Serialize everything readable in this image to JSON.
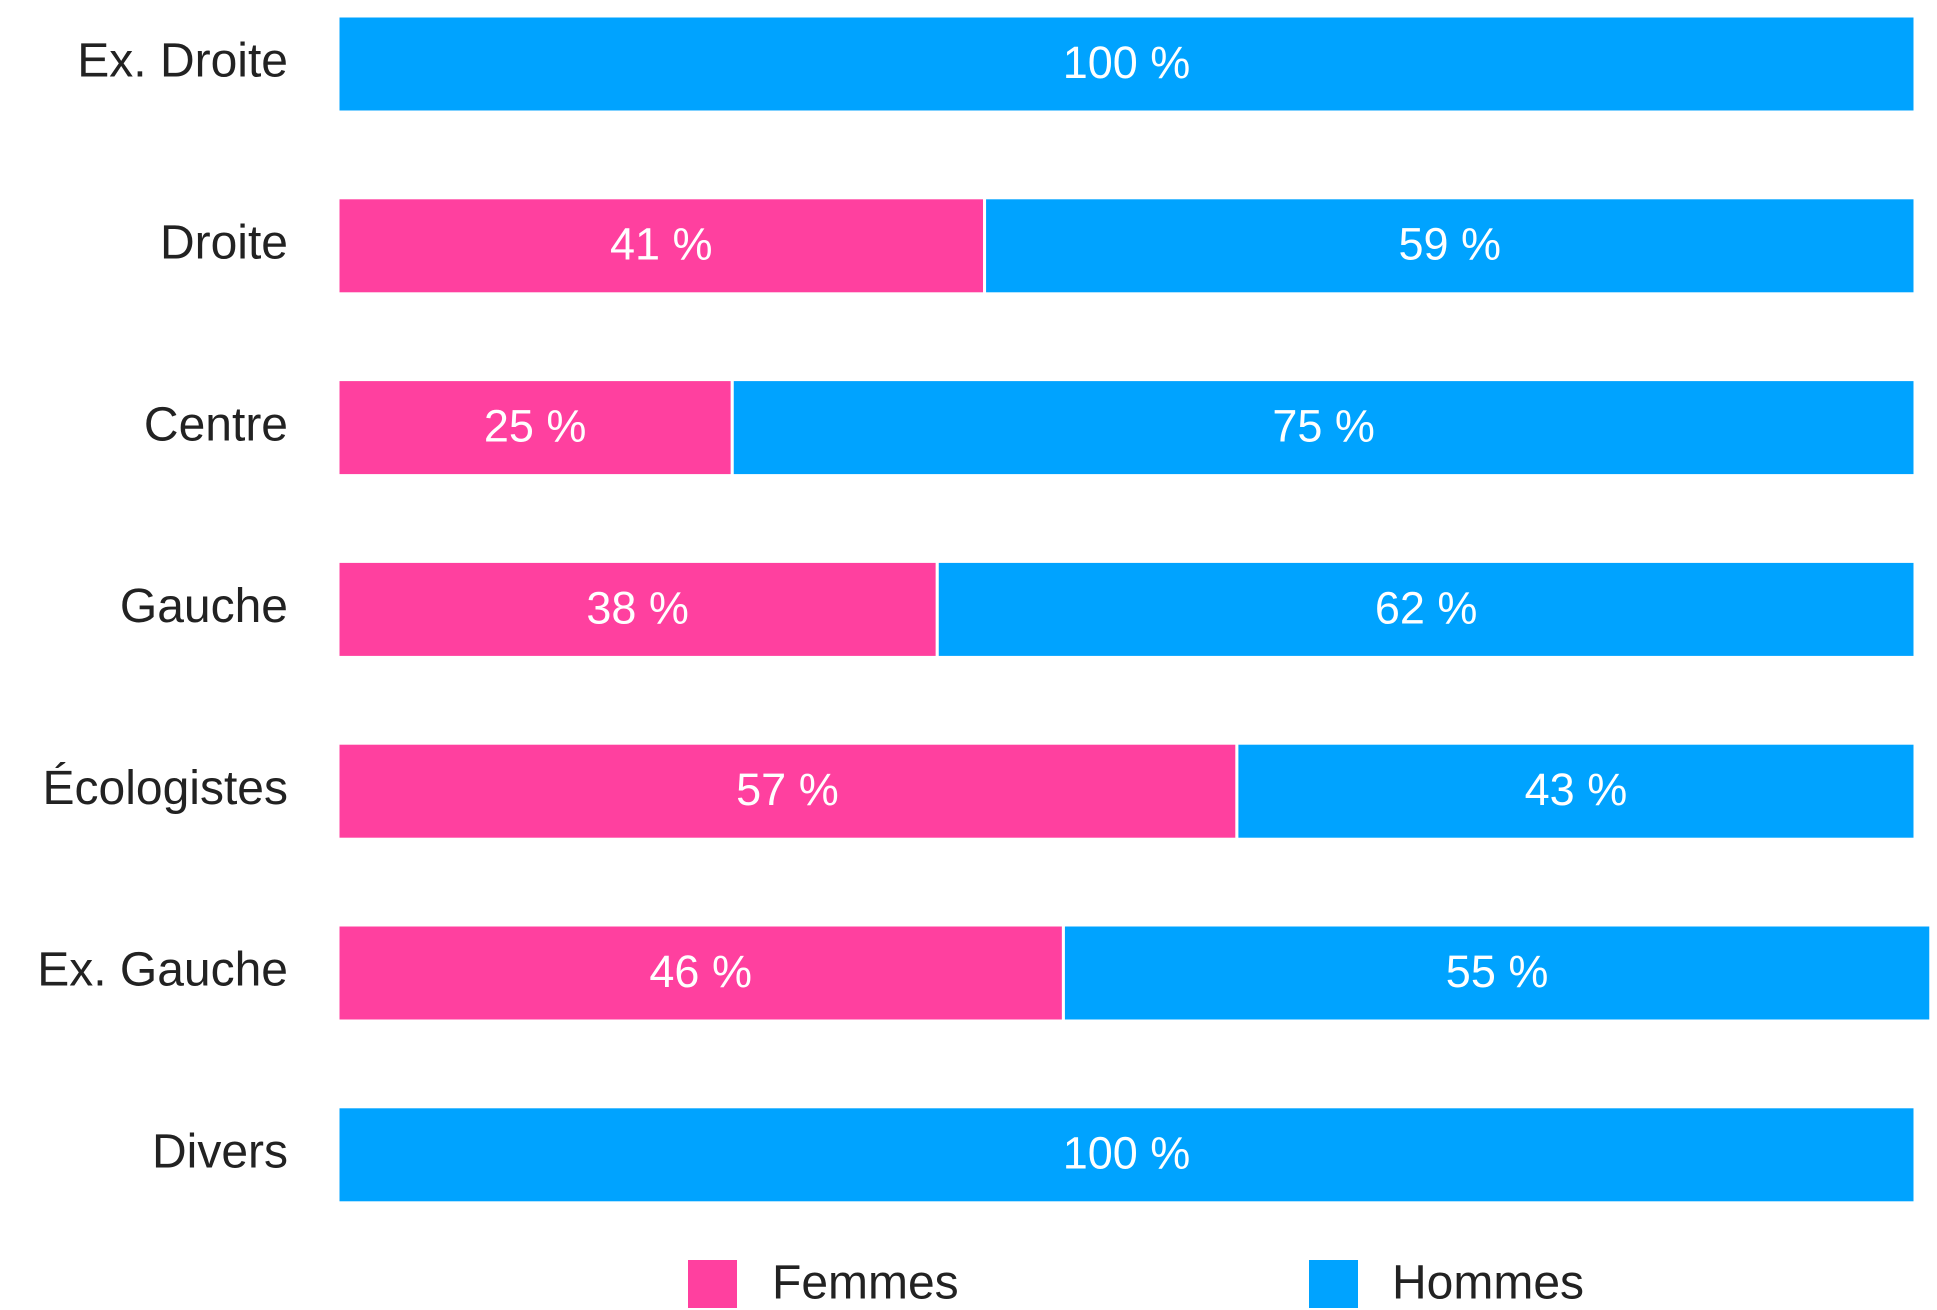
{
  "chart_data": {
    "type": "stacked-bar-horizontal",
    "categories": [
      "Ex. Droite",
      "Droite",
      "Centre",
      "Gauche",
      "Écologistes",
      "Ex. Gauche",
      "Divers"
    ],
    "series": [
      {
        "name": "Femmes",
        "color": "#ff409f",
        "values": [
          0,
          41,
          25,
          38,
          57,
          46,
          0
        ],
        "value_labels": [
          null,
          "41 %",
          "25 %",
          "38 %",
          "57 %",
          "46 %",
          null
        ]
      },
      {
        "name": "Hommes",
        "color": "#00a3ff",
        "values": [
          100,
          59,
          75,
          62,
          43,
          55,
          100
        ],
        "value_labels": [
          "100 %",
          "59 %",
          "75 %",
          "62 %",
          "43 %",
          "55 %",
          "100 %"
        ]
      }
    ],
    "xlim": [
      0,
      100
    ],
    "legend": "bottom"
  }
}
